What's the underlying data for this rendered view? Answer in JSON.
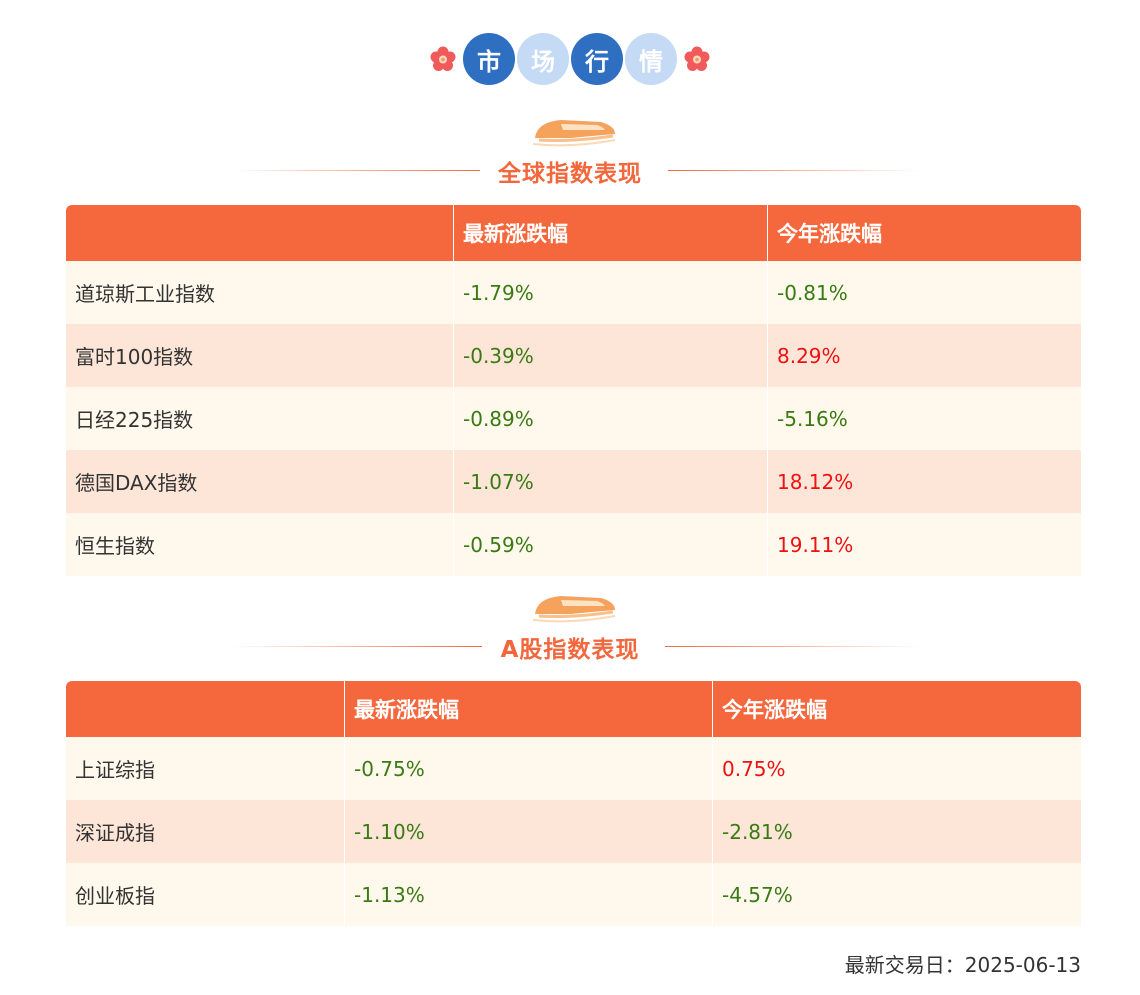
{
  "header": {
    "chars": [
      "市",
      "场",
      "行",
      "情"
    ]
  },
  "global": {
    "title": "全球指数表现",
    "columns": [
      "",
      "最新涨跌幅",
      "今年涨跌幅"
    ],
    "rows": [
      {
        "name": "道琼斯工业指数",
        "latest": "-1.79%",
        "ytd": "-0.81%",
        "latest_dir": "neg",
        "ytd_dir": "neg"
      },
      {
        "name": "富时100指数",
        "latest": "-0.39%",
        "ytd": "8.29%",
        "latest_dir": "neg",
        "ytd_dir": "pos"
      },
      {
        "name": "日经225指数",
        "latest": "-0.89%",
        "ytd": "-5.16%",
        "latest_dir": "neg",
        "ytd_dir": "neg"
      },
      {
        "name": "德国DAX指数",
        "latest": "-1.07%",
        "ytd": "18.12%",
        "latest_dir": "neg",
        "ytd_dir": "pos"
      },
      {
        "name": "恒生指数",
        "latest": "-0.59%",
        "ytd": "19.11%",
        "latest_dir": "neg",
        "ytd_dir": "pos"
      }
    ]
  },
  "ashare": {
    "title": "A股指数表现",
    "columns": [
      "",
      "最新涨跌幅",
      "今年涨跌幅"
    ],
    "rows": [
      {
        "name": "上证综指",
        "latest": "-0.75%",
        "ytd": "0.75%",
        "latest_dir": "neg",
        "ytd_dir": "pos"
      },
      {
        "name": "深证成指",
        "latest": "-1.10%",
        "ytd": "-2.81%",
        "latest_dir": "neg",
        "ytd_dir": "neg"
      },
      {
        "name": "创业板指",
        "latest": "-1.13%",
        "ytd": "-4.57%",
        "latest_dir": "neg",
        "ytd_dir": "neg"
      }
    ]
  },
  "footer": {
    "label": "最新交易日：",
    "date": "2025-06-13"
  },
  "colors": {
    "accent": "#f5683d",
    "negative": "#3a7a12",
    "positive": "#ee1111",
    "badge_dark": "#2e6fc2",
    "badge_light": "#c5daf5"
  }
}
